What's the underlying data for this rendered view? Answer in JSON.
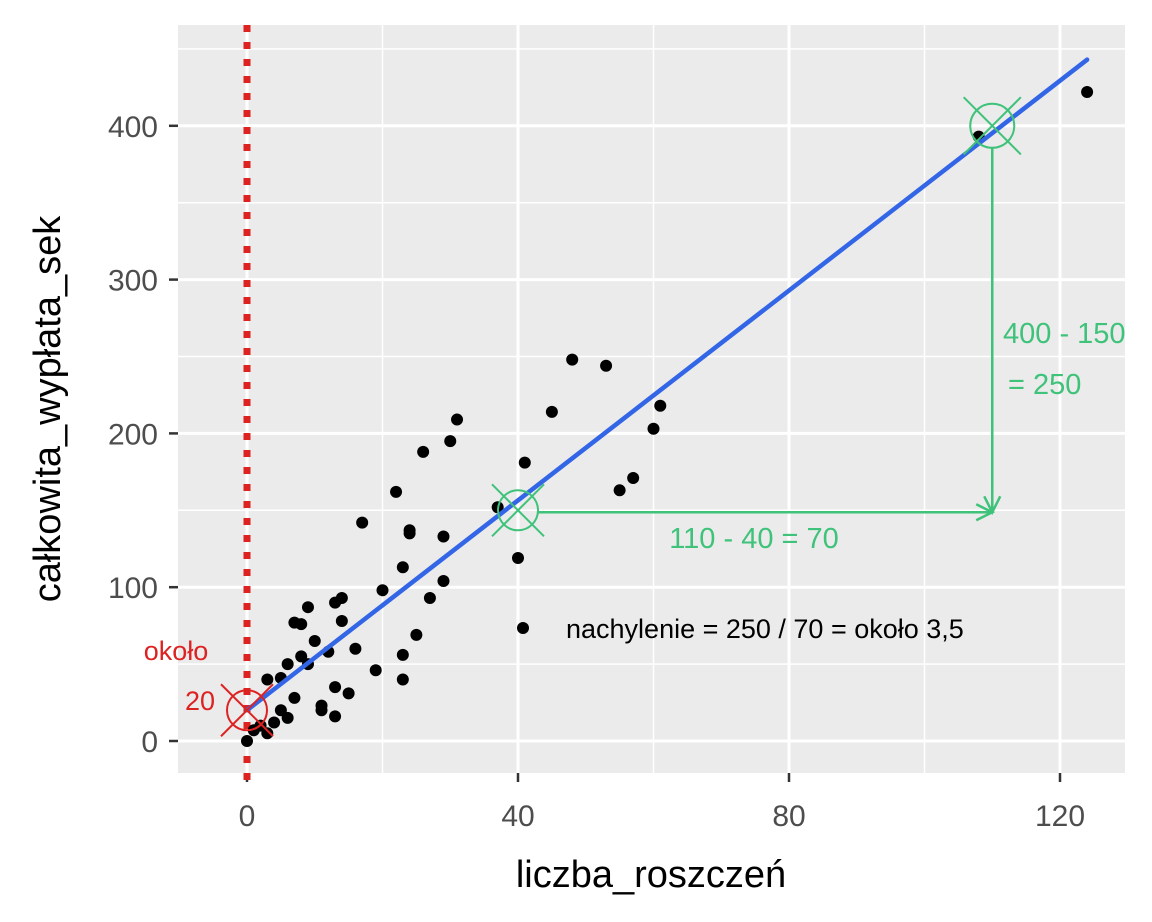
{
  "colors": {
    "panel": "#ebebeb",
    "grid": "#ffffff",
    "points": "#000000",
    "fit_line": "#3366e6",
    "green": "#3fc27a",
    "red": "#dd2222"
  },
  "chart_data": {
    "type": "scatter",
    "title": "",
    "xlabel": "liczba_roszczeń",
    "ylabel": "całkowita_wypłata_sek",
    "xlim": [
      -10,
      130
    ],
    "ylim": [
      -22,
      452
    ],
    "x_ticks": [
      0,
      40,
      80,
      120
    ],
    "x_tick_labels": [
      "0",
      "40",
      "80",
      "120"
    ],
    "y_ticks": [
      0,
      100,
      200,
      300,
      400
    ],
    "y_tick_labels": [
      "0",
      "100",
      "200",
      "300",
      "400"
    ],
    "grid": true,
    "points": [
      [
        0,
        0
      ],
      [
        1,
        7
      ],
      [
        2,
        10
      ],
      [
        3,
        5
      ],
      [
        3,
        40
      ],
      [
        4,
        12
      ],
      [
        5,
        20
      ],
      [
        5,
        41
      ],
      [
        6,
        15
      ],
      [
        6,
        50
      ],
      [
        7,
        28
      ],
      [
        7,
        77
      ],
      [
        8,
        55
      ],
      [
        8,
        76
      ],
      [
        9,
        50
      ],
      [
        9,
        87
      ],
      [
        10,
        65
      ],
      [
        11,
        23
      ],
      [
        11,
        20
      ],
      [
        12,
        58
      ],
      [
        13,
        35
      ],
      [
        13,
        16
      ],
      [
        13,
        90
      ],
      [
        14,
        93
      ],
      [
        14,
        78
      ],
      [
        15,
        31
      ],
      [
        16,
        60
      ],
      [
        17,
        142
      ],
      [
        19,
        46
      ],
      [
        20,
        98
      ],
      [
        22,
        162
      ],
      [
        23,
        113
      ],
      [
        23,
        40
      ],
      [
        23,
        56
      ],
      [
        24,
        137
      ],
      [
        24,
        135
      ],
      [
        25,
        69
      ],
      [
        26,
        188
      ],
      [
        27,
        93
      ],
      [
        29,
        104
      ],
      [
        29,
        133
      ],
      [
        30,
        195
      ],
      [
        31,
        209
      ],
      [
        37,
        152
      ],
      [
        40,
        119
      ],
      [
        41,
        181
      ],
      [
        45,
        214
      ],
      [
        48,
        248
      ],
      [
        53,
        244
      ],
      [
        55,
        163
      ],
      [
        57,
        171
      ],
      [
        60,
        203
      ],
      [
        61,
        218
      ],
      [
        108,
        393
      ],
      [
        124,
        422
      ]
    ],
    "fit_line": {
      "x": [
        0,
        124
      ],
      "y": [
        20,
        443
      ]
    },
    "annotations": {
      "intercept_label_1": "około",
      "intercept_label_2": "20",
      "run_label": "110 - 40 = 70",
      "rise_label_1": "400 - 150",
      "rise_label_2": "= 250",
      "slope_label": "nachylenie = 250 / 70 = około 3,5"
    },
    "markers": {
      "intercept": [
        0,
        20
      ],
      "start": [
        40,
        150
      ],
      "end": [
        110,
        400
      ]
    }
  }
}
